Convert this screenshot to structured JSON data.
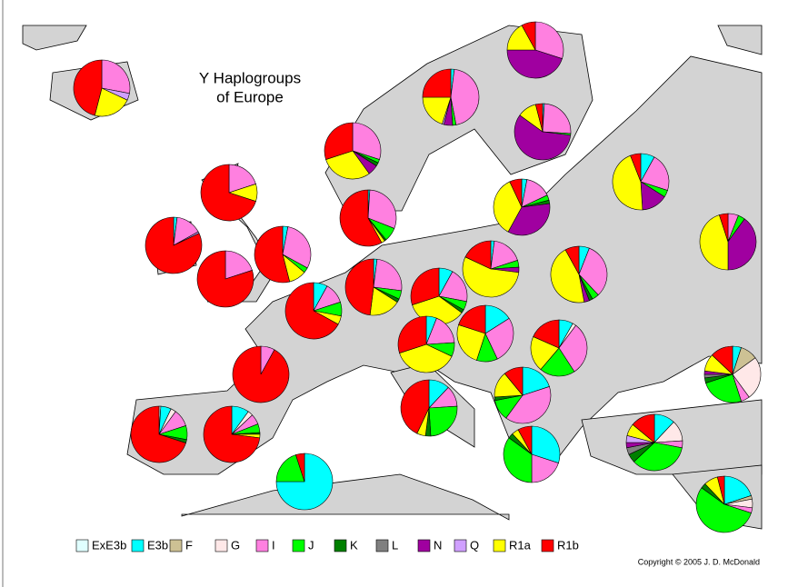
{
  "title_lines": [
    "Y Haplogroups",
    "of Europe"
  ],
  "legend": [
    {
      "name": "ExE3b",
      "color": "#e0ffff"
    },
    {
      "name": "E3b",
      "color": "#00ffff"
    },
    {
      "name": "F",
      "color": "#cdc194"
    },
    {
      "name": "G",
      "color": "#ffe8e8"
    },
    {
      "name": "I",
      "color": "#ff80e0"
    },
    {
      "name": "J",
      "color": "#00ff00"
    },
    {
      "name": "K",
      "color": "#008000"
    },
    {
      "name": "L",
      "color": "#808080"
    },
    {
      "name": "N",
      "color": "#a000a0"
    },
    {
      "name": "Q",
      "color": "#d0a0ff"
    },
    {
      "name": "R1a",
      "color": "#ffff00"
    },
    {
      "name": "R1b",
      "color": "#ff0000"
    }
  ],
  "pies": [
    {
      "values": [
        0,
        0,
        0,
        0,
        28,
        0,
        0,
        0,
        0,
        4,
        22,
        46
      ]
    },
    {
      "values": [
        0,
        2,
        0,
        0,
        45,
        2,
        0,
        0,
        5,
        1,
        20,
        25
      ]
    },
    {
      "values": [
        0,
        0,
        0,
        0,
        30,
        0,
        0,
        0,
        45,
        0,
        17,
        8
      ]
    },
    {
      "values": [
        0,
        1,
        0,
        0,
        25,
        1,
        0,
        0,
        58,
        0,
        11,
        4
      ]
    },
    {
      "values": [
        0,
        0,
        0,
        0,
        30,
        2,
        2,
        0,
        6,
        0,
        30,
        30
      ]
    },
    {
      "values": [
        0,
        0,
        0,
        0,
        20,
        0,
        0,
        0,
        0,
        0,
        10,
        70
      ]
    },
    {
      "values": [
        0,
        1,
        0,
        0,
        30,
        8,
        1,
        0,
        0,
        0,
        2,
        58
      ]
    },
    {
      "values": [
        0,
        2,
        0,
        0,
        15,
        0,
        0,
        0,
        0,
        1,
        0,
        82
      ]
    },
    {
      "values": [
        0,
        0,
        0,
        0,
        20,
        0,
        0,
        0,
        0,
        0,
        0,
        80
      ]
    },
    {
      "values": [
        0,
        3,
        0,
        0,
        30,
        3,
        0,
        0,
        0,
        0,
        10,
        54
      ]
    },
    {
      "values": [
        0,
        3,
        0,
        0,
        15,
        3,
        2,
        0,
        35,
        0,
        35,
        7
      ]
    },
    {
      "values": [
        0,
        8,
        0,
        0,
        22,
        4,
        0,
        0,
        15,
        0,
        45,
        6
      ]
    },
    {
      "values": [
        0,
        0,
        0,
        0,
        6,
        4,
        0,
        0,
        40,
        0,
        45,
        5
      ]
    },
    {
      "values": [
        0,
        2,
        0,
        0,
        25,
        5,
        2,
        0,
        0,
        0,
        18,
        48
      ]
    },
    {
      "values": [
        0,
        8,
        0,
        0,
        12,
        8,
        0,
        0,
        0,
        0,
        5,
        67
      ]
    },
    {
      "values": [
        0,
        2,
        0,
        0,
        18,
        4,
        0,
        0,
        3,
        0,
        55,
        18
      ]
    },
    {
      "values": [
        0,
        6,
        0,
        0,
        32,
        4,
        2,
        0,
        3,
        0,
        45,
        8
      ]
    },
    {
      "values": [
        0,
        8,
        0,
        0,
        20,
        5,
        2,
        0,
        0,
        0,
        35,
        30
      ]
    },
    {
      "values": [
        0,
        6,
        0,
        0,
        18,
        8,
        0,
        0,
        0,
        0,
        38,
        30
      ]
    },
    {
      "values": [
        0,
        16,
        0,
        0,
        27,
        12,
        0,
        0,
        0,
        0,
        25,
        20
      ]
    },
    {
      "values": [
        0,
        8,
        0,
        2,
        30,
        20,
        0,
        0,
        0,
        0,
        20,
        18
      ]
    },
    {
      "values": [
        0,
        0,
        0,
        0,
        8,
        0,
        0,
        0,
        0,
        0,
        0,
        92
      ]
    },
    {
      "values": [
        0,
        5,
        10,
        25,
        5,
        25,
        3,
        2,
        2,
        0,
        10,
        13
      ]
    },
    {
      "values": [
        0,
        20,
        0,
        0,
        40,
        12,
        2,
        0,
        0,
        0,
        15,
        11
      ]
    },
    {
      "values": [
        0,
        12,
        0,
        0,
        12,
        25,
        3,
        0,
        0,
        0,
        5,
        43
      ]
    },
    {
      "values": [
        1,
        6,
        0,
        3,
        10,
        8,
        2,
        0,
        0,
        0,
        0,
        70
      ]
    },
    {
      "values": [
        0,
        10,
        0,
        3,
        6,
        5,
        1,
        0,
        0,
        0,
        2,
        73
      ]
    },
    {
      "values": [
        0,
        12,
        0,
        12,
        4,
        35,
        5,
        4,
        3,
        4,
        7,
        14
      ]
    },
    {
      "values": [
        0,
        30,
        0,
        0,
        20,
        35,
        3,
        0,
        0,
        0,
        4,
        8
      ]
    },
    {
      "values": [
        0,
        75,
        0,
        0,
        0,
        20,
        0,
        0,
        0,
        0,
        0,
        5
      ]
    },
    {
      "values": [
        0,
        20,
        2,
        5,
        3,
        55,
        3,
        0,
        0,
        0,
        8,
        4
      ]
    }
  ],
  "copyright": "Copyright © 2005  J. D. McDonald"
}
